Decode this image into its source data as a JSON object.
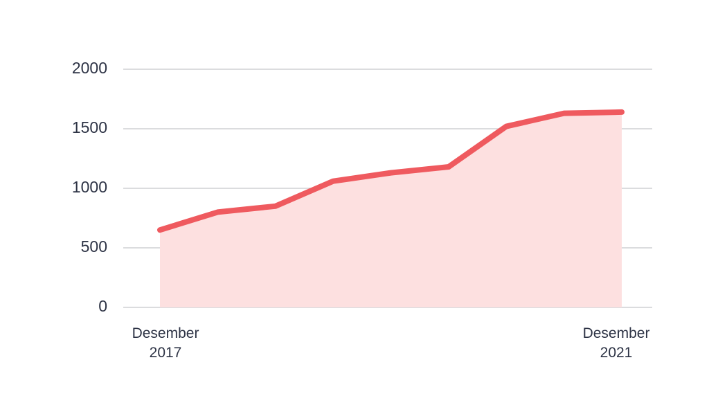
{
  "chart_data": {
    "type": "area-line",
    "categories": [
      "Desember 2017",
      null,
      null,
      null,
      null,
      null,
      null,
      null,
      "Desember 2021"
    ],
    "values": [
      650,
      800,
      850,
      1060,
      1130,
      1180,
      1520,
      1630,
      1640
    ],
    "color": "#ef5a5f",
    "fill_color": "#fde0e0",
    "ylim": [
      0,
      2000
    ],
    "yticks": [
      0,
      500,
      1000,
      1500,
      2000
    ],
    "grid": true
  }
}
